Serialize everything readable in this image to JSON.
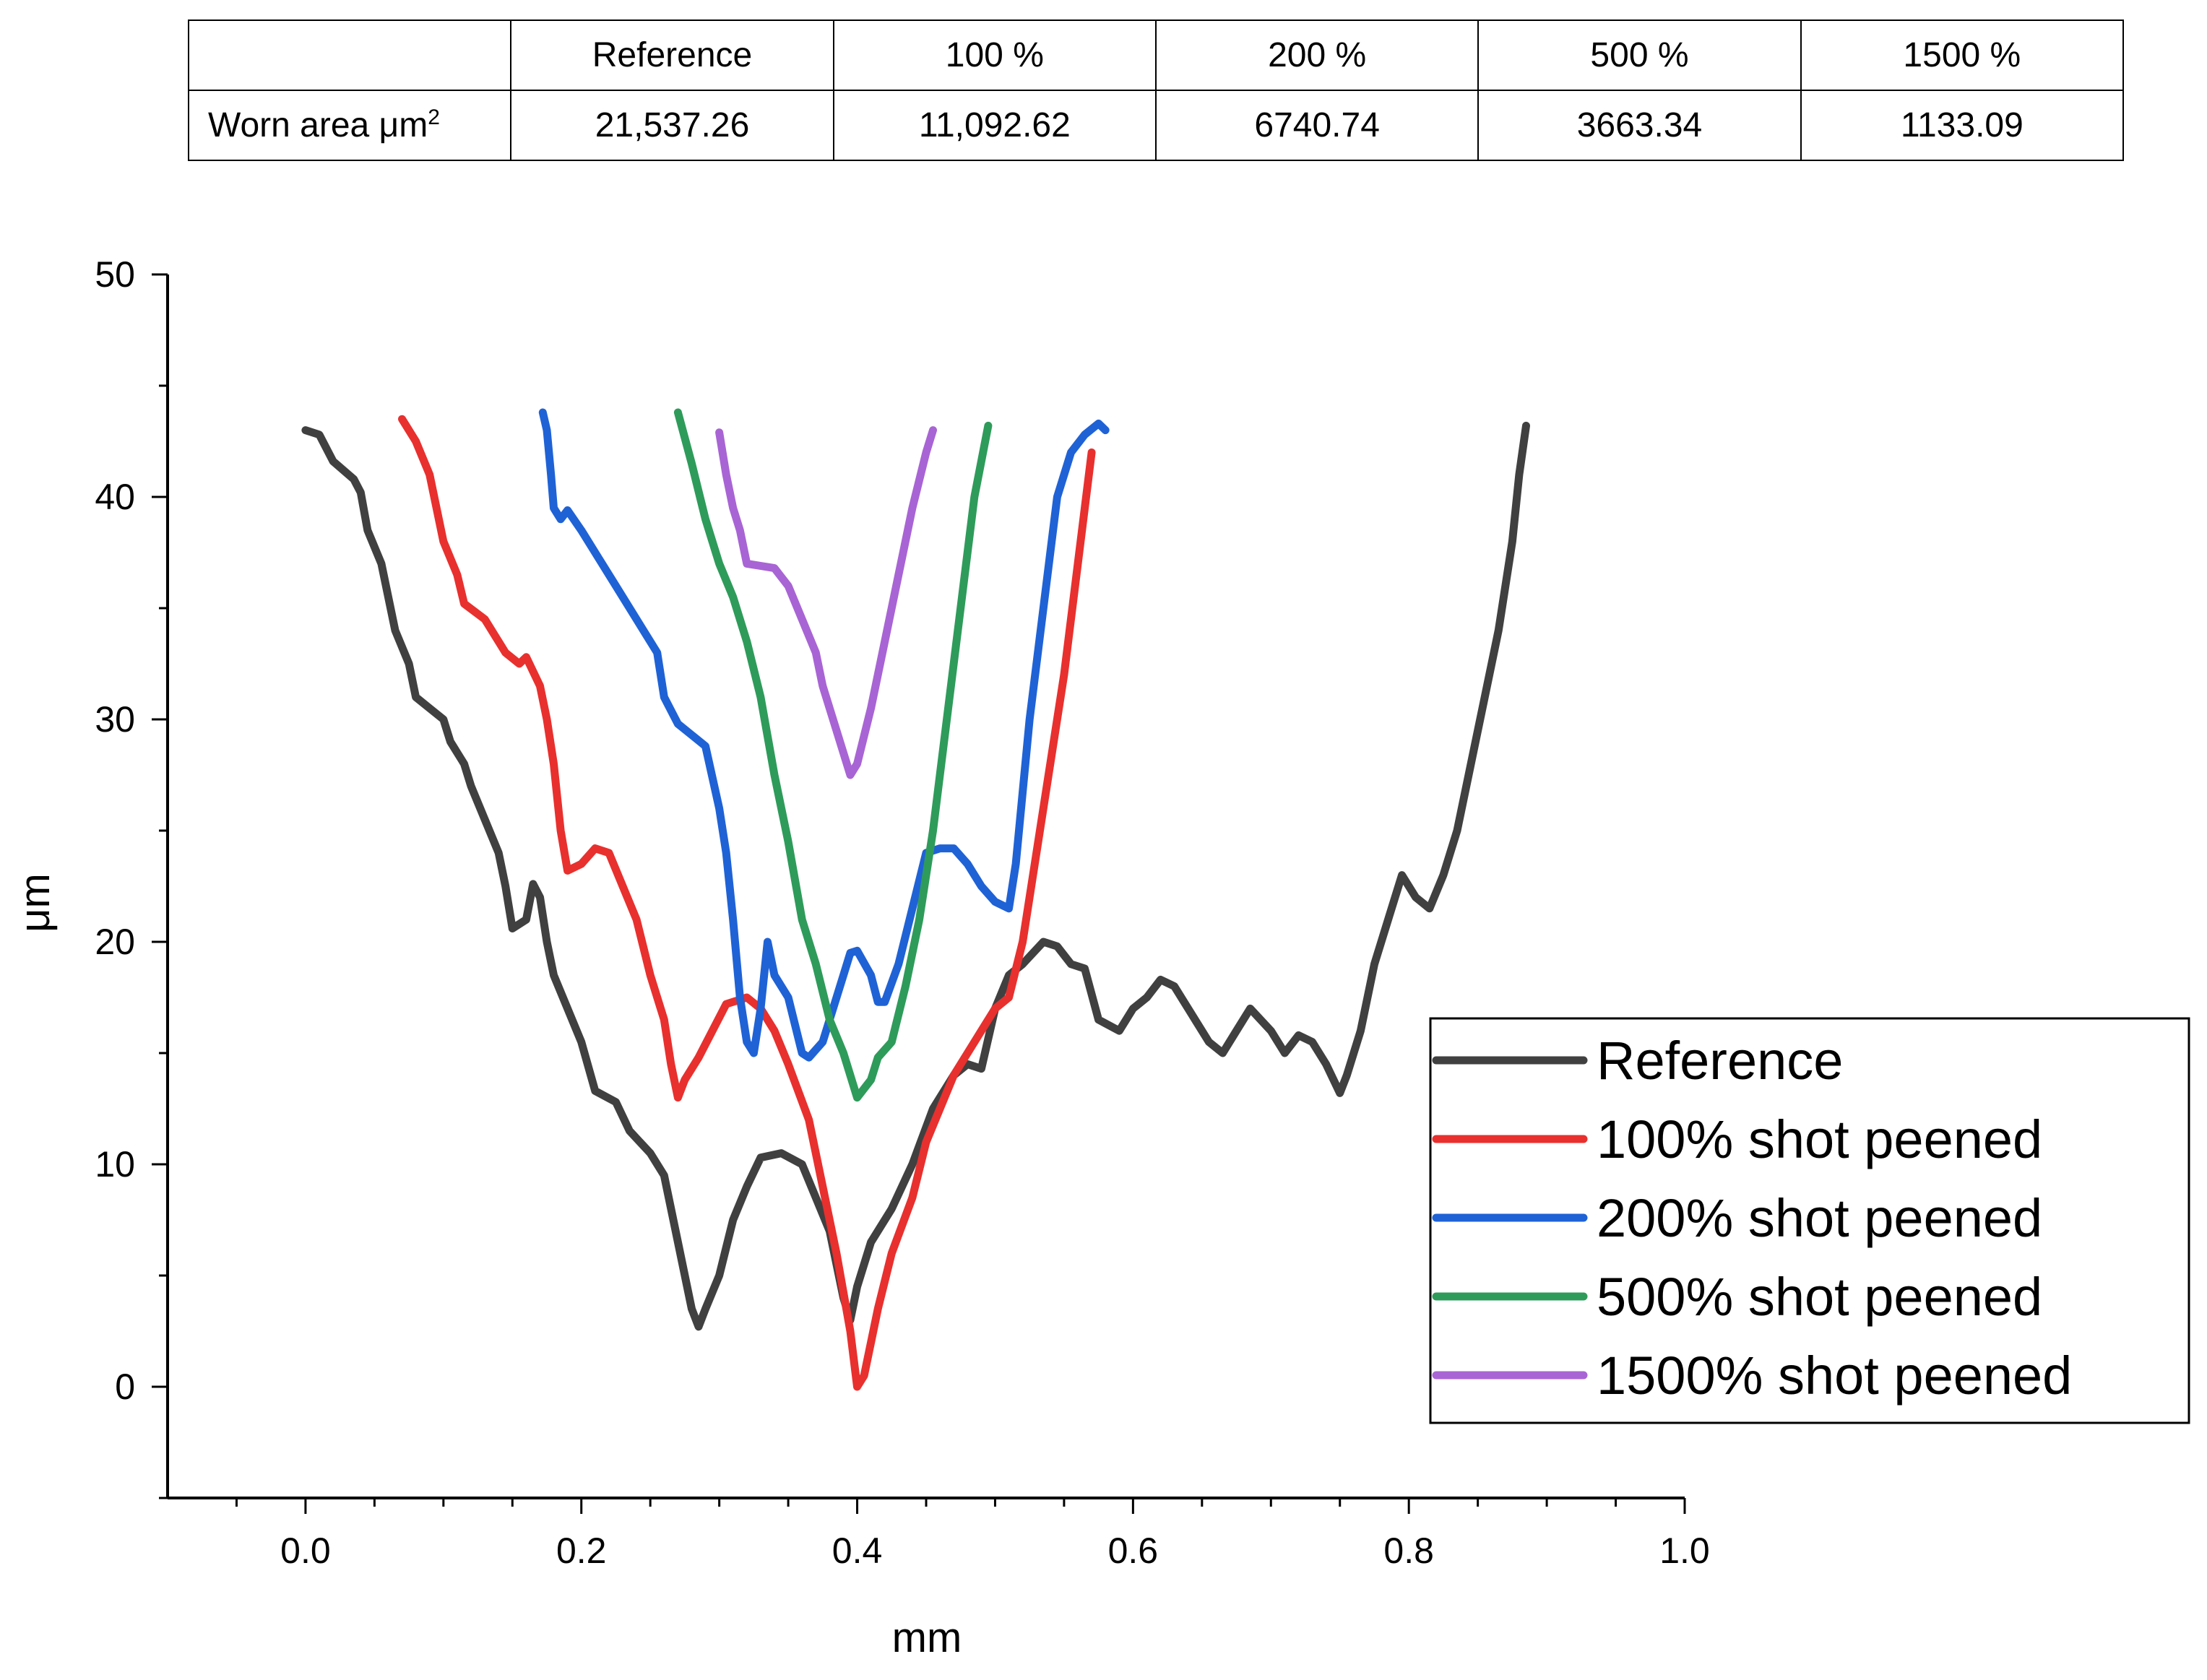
{
  "table": {
    "header": [
      "",
      "Reference",
      "100 %",
      "200 %",
      "500 %",
      "1500 %"
    ],
    "row_label": "Worn area μm",
    "row_label_sup": "2",
    "values": [
      "21,537.26",
      "11,092.62",
      "6740.74",
      "3663.34",
      "1133.09"
    ]
  },
  "chart_data": {
    "type": "line",
    "xlabel": "mm",
    "ylabel": "μm",
    "xlim": [
      -0.1,
      1.0
    ],
    "ylim": [
      -5,
      50
    ],
    "x_ticks": [
      "0.0",
      "0.2",
      "0.4",
      "0.6",
      "0.8",
      "1.0"
    ],
    "y_ticks": [
      "0",
      "10",
      "20",
      "30",
      "40",
      "50"
    ],
    "x_tick_values": [
      0,
      0.2,
      0.4,
      0.6,
      0.8,
      1.0
    ],
    "y_tick_values": [
      0,
      10,
      20,
      30,
      40,
      50
    ],
    "grid": false,
    "legend_position": "bottom-right",
    "series": [
      {
        "name": "Reference",
        "color": "#404040",
        "points": [
          [
            0.0,
            43.0
          ],
          [
            0.01,
            42.8
          ],
          [
            0.02,
            41.6
          ],
          [
            0.035,
            40.8
          ],
          [
            0.04,
            40.2
          ],
          [
            0.045,
            38.5
          ],
          [
            0.055,
            37.0
          ],
          [
            0.065,
            34.0
          ],
          [
            0.075,
            32.5
          ],
          [
            0.08,
            31.0
          ],
          [
            0.09,
            30.5
          ],
          [
            0.1,
            30.0
          ],
          [
            0.105,
            29.0
          ],
          [
            0.115,
            28.0
          ],
          [
            0.12,
            27.0
          ],
          [
            0.13,
            25.5
          ],
          [
            0.14,
            24.0
          ],
          [
            0.145,
            22.5
          ],
          [
            0.15,
            20.6
          ],
          [
            0.16,
            21.0
          ],
          [
            0.165,
            22.6
          ],
          [
            0.17,
            22.0
          ],
          [
            0.175,
            20.0
          ],
          [
            0.18,
            18.5
          ],
          [
            0.19,
            17.0
          ],
          [
            0.2,
            15.5
          ],
          [
            0.21,
            13.3
          ],
          [
            0.225,
            12.8
          ],
          [
            0.235,
            11.5
          ],
          [
            0.25,
            10.5
          ],
          [
            0.26,
            9.5
          ],
          [
            0.27,
            6.5
          ],
          [
            0.28,
            3.5
          ],
          [
            0.285,
            2.7
          ],
          [
            0.29,
            3.5
          ],
          [
            0.3,
            5.0
          ],
          [
            0.31,
            7.5
          ],
          [
            0.32,
            9.0
          ],
          [
            0.33,
            10.3
          ],
          [
            0.345,
            10.5
          ],
          [
            0.36,
            10.0
          ],
          [
            0.37,
            8.5
          ],
          [
            0.38,
            7.0
          ],
          [
            0.39,
            4.0
          ],
          [
            0.395,
            3.0
          ],
          [
            0.4,
            4.5
          ],
          [
            0.41,
            6.5
          ],
          [
            0.425,
            8.0
          ],
          [
            0.44,
            10.0
          ],
          [
            0.455,
            12.5
          ],
          [
            0.47,
            14.0
          ],
          [
            0.48,
            14.5
          ],
          [
            0.49,
            14.3
          ],
          [
            0.5,
            17.0
          ],
          [
            0.51,
            18.5
          ],
          [
            0.52,
            19.0
          ],
          [
            0.535,
            20.0
          ],
          [
            0.545,
            19.8
          ],
          [
            0.555,
            19.0
          ],
          [
            0.565,
            18.8
          ],
          [
            0.575,
            16.5
          ],
          [
            0.59,
            16.0
          ],
          [
            0.6,
            17.0
          ],
          [
            0.61,
            17.5
          ],
          [
            0.62,
            18.3
          ],
          [
            0.63,
            18.0
          ],
          [
            0.64,
            17.0
          ],
          [
            0.655,
            15.5
          ],
          [
            0.665,
            15.0
          ],
          [
            0.675,
            16.0
          ],
          [
            0.685,
            17.0
          ],
          [
            0.7,
            16.0
          ],
          [
            0.71,
            15.0
          ],
          [
            0.72,
            15.8
          ],
          [
            0.73,
            15.5
          ],
          [
            0.74,
            14.5
          ],
          [
            0.75,
            13.2
          ],
          [
            0.755,
            14.0
          ],
          [
            0.765,
            16.0
          ],
          [
            0.775,
            19.0
          ],
          [
            0.785,
            21.0
          ],
          [
            0.795,
            23.0
          ],
          [
            0.805,
            22.0
          ],
          [
            0.815,
            21.5
          ],
          [
            0.825,
            23.0
          ],
          [
            0.835,
            25.0
          ],
          [
            0.845,
            28.0
          ],
          [
            0.855,
            31.0
          ],
          [
            0.865,
            34.0
          ],
          [
            0.875,
            38.0
          ],
          [
            0.88,
            41.0
          ],
          [
            0.885,
            43.2
          ]
        ]
      },
      {
        "name": "100% shot peened",
        "color": "#e8302e",
        "points": [
          [
            0.07,
            43.5
          ],
          [
            0.08,
            42.5
          ],
          [
            0.09,
            41.0
          ],
          [
            0.1,
            38.0
          ],
          [
            0.11,
            36.5
          ],
          [
            0.115,
            35.2
          ],
          [
            0.13,
            34.5
          ],
          [
            0.145,
            33.0
          ],
          [
            0.155,
            32.5
          ],
          [
            0.16,
            32.8
          ],
          [
            0.17,
            31.5
          ],
          [
            0.175,
            30.0
          ],
          [
            0.18,
            28.0
          ],
          [
            0.185,
            25.0
          ],
          [
            0.19,
            23.2
          ],
          [
            0.2,
            23.5
          ],
          [
            0.21,
            24.2
          ],
          [
            0.22,
            24.0
          ],
          [
            0.23,
            22.5
          ],
          [
            0.24,
            21.0
          ],
          [
            0.25,
            18.5
          ],
          [
            0.26,
            16.5
          ],
          [
            0.265,
            14.5
          ],
          [
            0.27,
            13.0
          ],
          [
            0.275,
            13.8
          ],
          [
            0.285,
            14.8
          ],
          [
            0.295,
            16.0
          ],
          [
            0.305,
            17.2
          ],
          [
            0.32,
            17.5
          ],
          [
            0.33,
            17.0
          ],
          [
            0.34,
            16.0
          ],
          [
            0.35,
            14.5
          ],
          [
            0.365,
            12.0
          ],
          [
            0.375,
            9.0
          ],
          [
            0.385,
            6.0
          ],
          [
            0.395,
            2.5
          ],
          [
            0.4,
            0.0
          ],
          [
            0.405,
            0.5
          ],
          [
            0.415,
            3.5
          ],
          [
            0.425,
            6.0
          ],
          [
            0.44,
            8.5
          ],
          [
            0.45,
            11.0
          ],
          [
            0.46,
            12.5
          ],
          [
            0.47,
            14.0
          ],
          [
            0.48,
            15.0
          ],
          [
            0.49,
            16.0
          ],
          [
            0.5,
            17.0
          ],
          [
            0.51,
            17.5
          ],
          [
            0.52,
            20.0
          ],
          [
            0.53,
            24.0
          ],
          [
            0.54,
            28.0
          ],
          [
            0.55,
            32.0
          ],
          [
            0.56,
            37.0
          ],
          [
            0.57,
            42.0
          ]
        ]
      },
      {
        "name": "200% shot peened",
        "color": "#1f62d6",
        "points": [
          [
            0.172,
            43.8
          ],
          [
            0.175,
            43.0
          ],
          [
            0.178,
            41.0
          ],
          [
            0.18,
            39.5
          ],
          [
            0.185,
            39.0
          ],
          [
            0.19,
            39.4
          ],
          [
            0.2,
            38.5
          ],
          [
            0.21,
            37.5
          ],
          [
            0.225,
            36.0
          ],
          [
            0.24,
            34.5
          ],
          [
            0.255,
            33.0
          ],
          [
            0.26,
            31.0
          ],
          [
            0.27,
            29.8
          ],
          [
            0.28,
            29.3
          ],
          [
            0.29,
            28.8
          ],
          [
            0.3,
            26.0
          ],
          [
            0.305,
            24.0
          ],
          [
            0.31,
            21.0
          ],
          [
            0.315,
            17.5
          ],
          [
            0.32,
            15.5
          ],
          [
            0.325,
            15.0
          ],
          [
            0.33,
            17.0
          ],
          [
            0.335,
            20.0
          ],
          [
            0.34,
            18.5
          ],
          [
            0.35,
            17.5
          ],
          [
            0.36,
            15.0
          ],
          [
            0.365,
            14.8
          ],
          [
            0.375,
            15.5
          ],
          [
            0.38,
            16.5
          ],
          [
            0.39,
            18.5
          ],
          [
            0.395,
            19.5
          ],
          [
            0.4,
            19.6
          ],
          [
            0.41,
            18.5
          ],
          [
            0.415,
            17.3
          ],
          [
            0.42,
            17.3
          ],
          [
            0.43,
            19.0
          ],
          [
            0.44,
            21.5
          ],
          [
            0.45,
            24.0
          ],
          [
            0.46,
            24.2
          ],
          [
            0.47,
            24.2
          ],
          [
            0.48,
            23.5
          ],
          [
            0.49,
            22.5
          ],
          [
            0.5,
            21.8
          ],
          [
            0.51,
            21.5
          ],
          [
            0.515,
            23.5
          ],
          [
            0.525,
            30.0
          ],
          [
            0.535,
            35.0
          ],
          [
            0.545,
            40.0
          ],
          [
            0.555,
            42.0
          ],
          [
            0.565,
            42.8
          ],
          [
            0.575,
            43.3
          ],
          [
            0.58,
            43.0
          ]
        ]
      },
      {
        "name": "500% shot peened",
        "color": "#2e9b5a",
        "points": [
          [
            0.27,
            43.8
          ],
          [
            0.28,
            41.5
          ],
          [
            0.29,
            39.0
          ],
          [
            0.3,
            37.0
          ],
          [
            0.31,
            35.5
          ],
          [
            0.32,
            33.5
          ],
          [
            0.33,
            31.0
          ],
          [
            0.34,
            27.5
          ],
          [
            0.35,
            24.5
          ],
          [
            0.36,
            21.0
          ],
          [
            0.37,
            19.0
          ],
          [
            0.38,
            16.5
          ],
          [
            0.39,
            15.0
          ],
          [
            0.4,
            13.0
          ],
          [
            0.41,
            13.8
          ],
          [
            0.415,
            14.8
          ],
          [
            0.425,
            15.5
          ],
          [
            0.435,
            18.0
          ],
          [
            0.445,
            21.0
          ],
          [
            0.455,
            25.0
          ],
          [
            0.465,
            30.0
          ],
          [
            0.475,
            35.0
          ],
          [
            0.485,
            40.0
          ],
          [
            0.495,
            43.2
          ]
        ]
      },
      {
        "name": "1500% shot peened",
        "color": "#a864d4",
        "points": [
          [
            0.3,
            42.9
          ],
          [
            0.305,
            41.0
          ],
          [
            0.31,
            39.5
          ],
          [
            0.315,
            38.5
          ],
          [
            0.32,
            37.0
          ],
          [
            0.33,
            36.9
          ],
          [
            0.34,
            36.8
          ],
          [
            0.35,
            36.0
          ],
          [
            0.36,
            34.5
          ],
          [
            0.37,
            33.0
          ],
          [
            0.375,
            31.5
          ],
          [
            0.385,
            29.5
          ],
          [
            0.395,
            27.5
          ],
          [
            0.4,
            28.0
          ],
          [
            0.41,
            30.5
          ],
          [
            0.42,
            33.5
          ],
          [
            0.43,
            36.5
          ],
          [
            0.44,
            39.5
          ],
          [
            0.45,
            42.0
          ],
          [
            0.455,
            43.0
          ]
        ]
      }
    ]
  }
}
